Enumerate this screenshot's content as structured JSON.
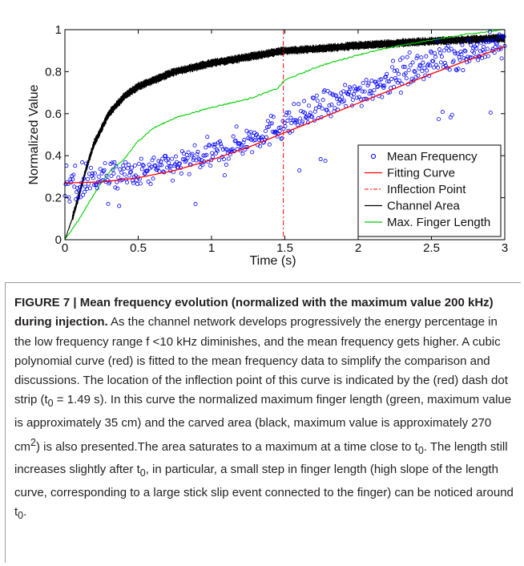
{
  "chart_data": {
    "type": "scatter+line",
    "xlabel": "Time (s)",
    "ylabel": "Normalized Value",
    "xlim": [
      0,
      3
    ],
    "ylim": [
      0,
      1
    ],
    "xticks": [
      "0",
      "0.5",
      "1",
      "1.5",
      "2",
      "2.5",
      "3"
    ],
    "yticks": [
      "0",
      "0.2",
      "0.4",
      "0.6",
      "0.8",
      "1"
    ],
    "grid": false,
    "legend_position": "bottom-right",
    "inflection_x": 1.49,
    "series": [
      {
        "name": "Mean Frequency",
        "kind": "scatter",
        "color": "#0000ff",
        "approx_trend": [
          [
            0,
            0.22
          ],
          [
            0.2,
            0.3
          ],
          [
            0.5,
            0.31
          ],
          [
            1.0,
            0.4
          ],
          [
            1.5,
            0.55
          ],
          [
            2.0,
            0.7
          ],
          [
            2.5,
            0.85
          ],
          [
            3.0,
            0.93
          ]
        ]
      },
      {
        "name": "Fitting Curve",
        "kind": "line",
        "color": "#ff0000",
        "points": [
          [
            0,
            0.27
          ],
          [
            0.25,
            0.275
          ],
          [
            0.5,
            0.295
          ],
          [
            0.75,
            0.33
          ],
          [
            1.0,
            0.38
          ],
          [
            1.25,
            0.44
          ],
          [
            1.5,
            0.51
          ],
          [
            1.75,
            0.58
          ],
          [
            2.0,
            0.65
          ],
          [
            2.25,
            0.72
          ],
          [
            2.5,
            0.79
          ],
          [
            2.75,
            0.855
          ],
          [
            3.0,
            0.92
          ]
        ]
      },
      {
        "name": "Inflection Point",
        "kind": "vline-dashdot",
        "color": "#ff0000",
        "x": 1.49
      },
      {
        "name": "Channel Area",
        "kind": "line",
        "color": "#000000",
        "points": [
          [
            0,
            0.0
          ],
          [
            0.05,
            0.1
          ],
          [
            0.1,
            0.22
          ],
          [
            0.15,
            0.35
          ],
          [
            0.2,
            0.46
          ],
          [
            0.3,
            0.6
          ],
          [
            0.4,
            0.68
          ],
          [
            0.5,
            0.73
          ],
          [
            0.75,
            0.8
          ],
          [
            1.0,
            0.84
          ],
          [
            1.25,
            0.87
          ],
          [
            1.5,
            0.9
          ],
          [
            1.75,
            0.91
          ],
          [
            2.0,
            0.925
          ],
          [
            2.5,
            0.945
          ],
          [
            3.0,
            0.96
          ]
        ]
      },
      {
        "name": "Max. Finger Length",
        "kind": "line",
        "color": "#00cc00",
        "points": [
          [
            0,
            0.0
          ],
          [
            0.1,
            0.1
          ],
          [
            0.2,
            0.22
          ],
          [
            0.3,
            0.32
          ],
          [
            0.4,
            0.38
          ],
          [
            0.5,
            0.47
          ],
          [
            0.6,
            0.53
          ],
          [
            0.75,
            0.58
          ],
          [
            1.0,
            0.63
          ],
          [
            1.25,
            0.67
          ],
          [
            1.45,
            0.72
          ],
          [
            1.5,
            0.76
          ],
          [
            1.75,
            0.83
          ],
          [
            2.0,
            0.88
          ],
          [
            2.25,
            0.92
          ],
          [
            2.5,
            0.95
          ],
          [
            2.75,
            0.98
          ],
          [
            3.0,
            1.0
          ]
        ]
      }
    ]
  },
  "caption": {
    "title": "FIGURE 7 | Mean frequency evolution (normalized with the maximum value 200 kHz) during injection.",
    "body_1": " As the channel network develops progressively the energy percentage in the low frequency range f <10 kHz diminishes, and the mean frequency gets higher. A cubic polynomial curve (red) is fitted to the mean frequency data to simplify the comparison and discussions. The location of the inflection point of this curve is indicated by the (red) dash dot strip (t",
    "sub_0a": "0",
    "body_2": " = 1.49 s). In this curve the normalized maximum finger length (green, maximum value is approximately 35 cm) and the carved area (black, maximum value is approximately 270 cm",
    "sup_2": "2",
    "body_3": ") is also presented.The area saturates to a maximum at a time close to t",
    "sub_0b": "0",
    "body_4": ". The length still increases slightly after t",
    "sub_0c": "0",
    "body_5": ", in particular, a small step in finger length (high slope of the length curve, corresponding to a large stick slip event connected to the finger) can be noticed around t",
    "sub_0d": "0",
    "body_6": "."
  }
}
